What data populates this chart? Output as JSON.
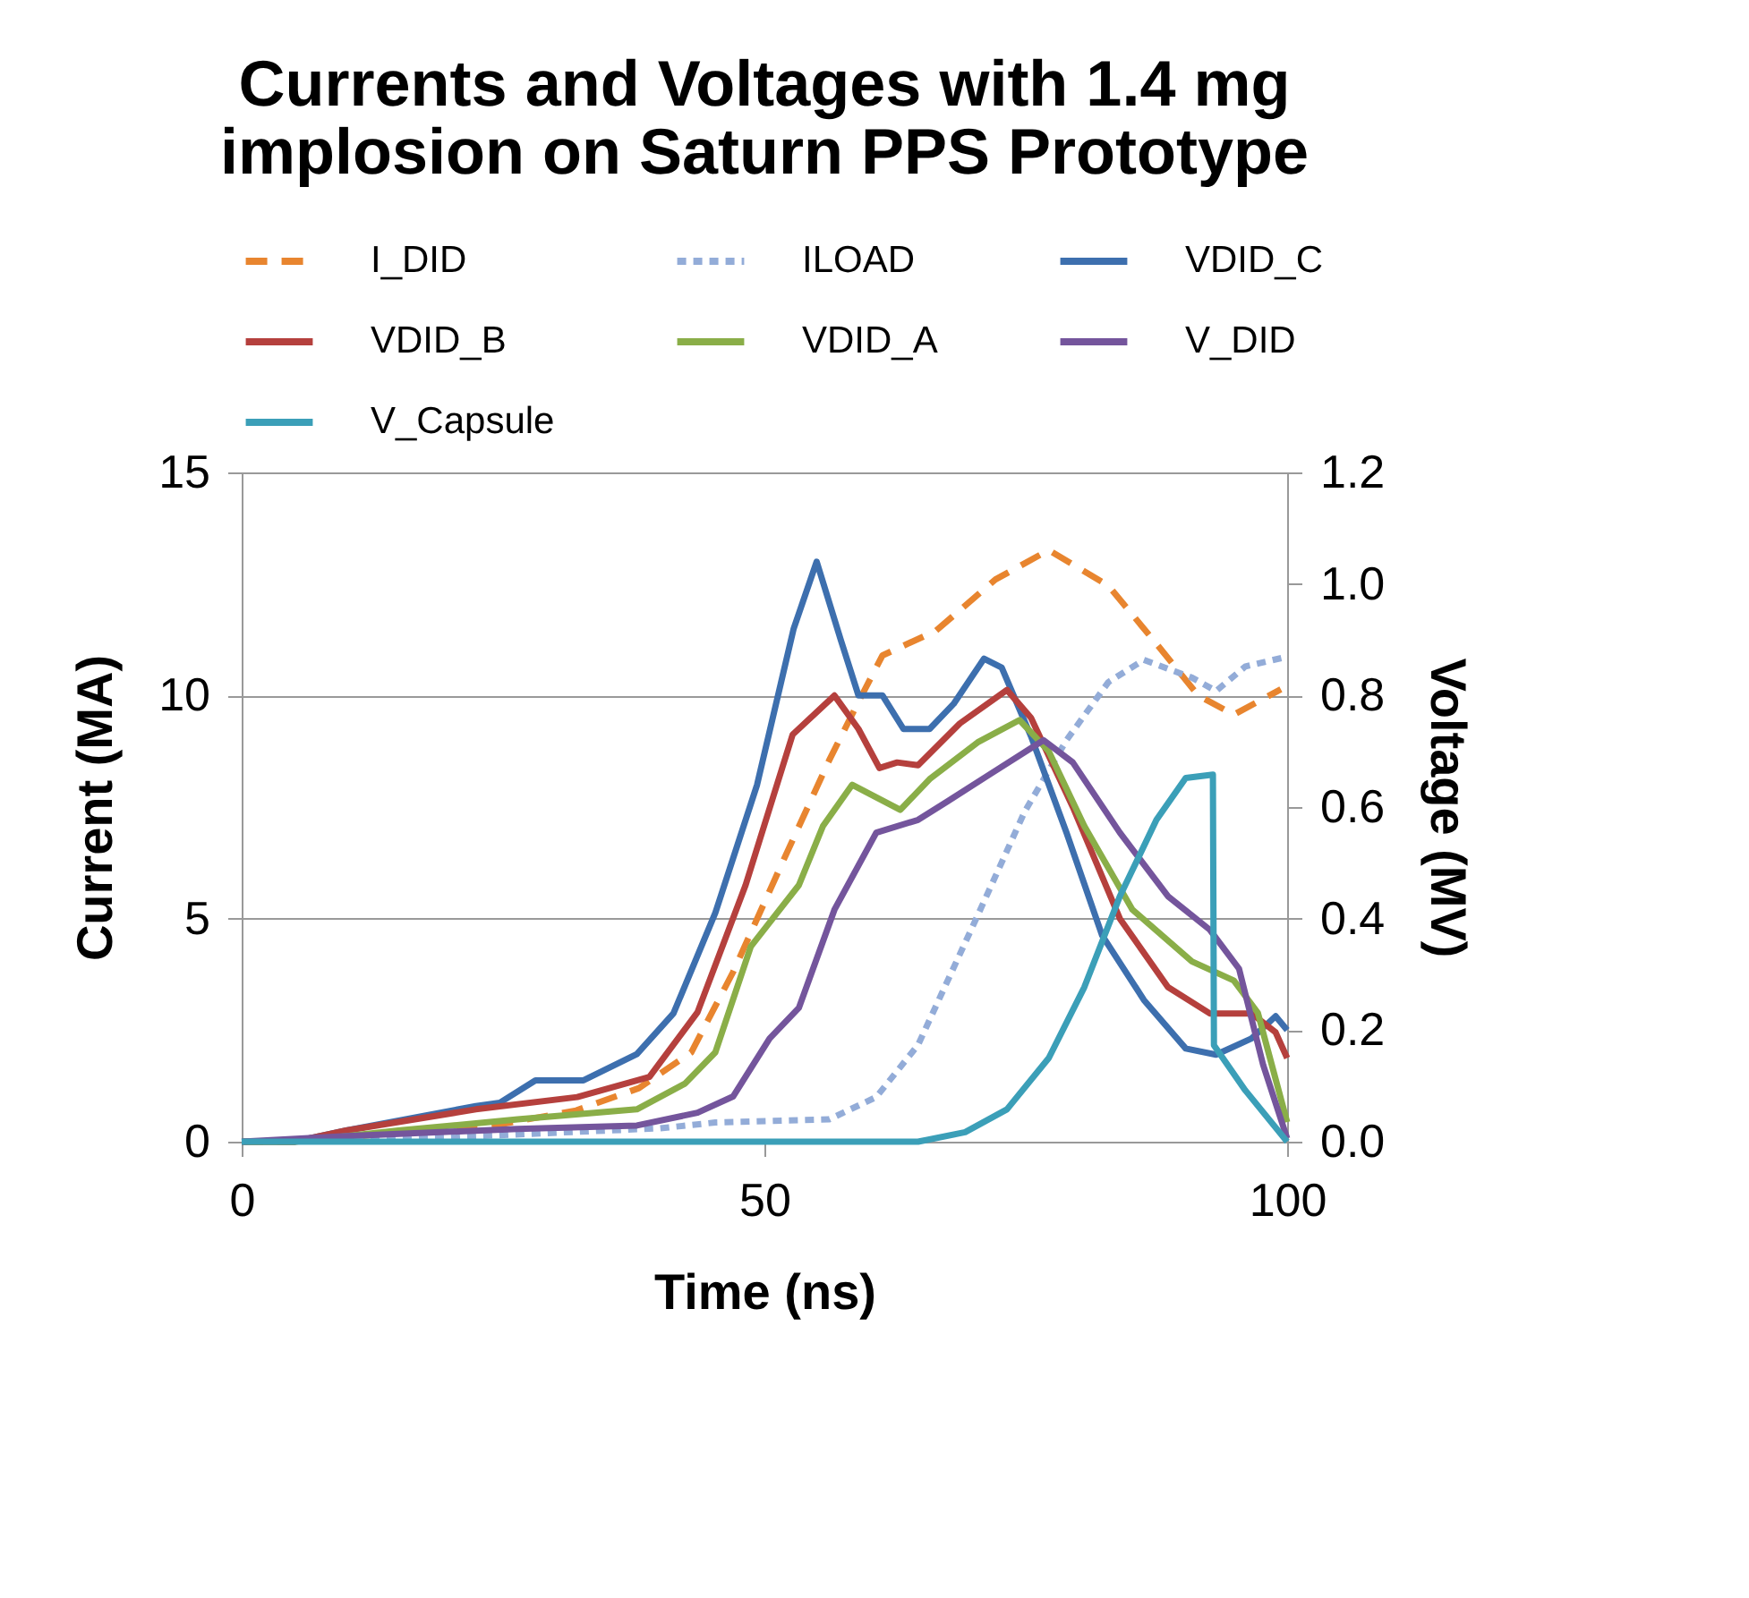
{
  "chart_data": {
    "type": "line",
    "title": "Currents and Voltages with 1.4 mg implosion on Saturn PPS Prototype",
    "xlabel": "Time (ns)",
    "ylabel": "Current (MA)",
    "y2label": "Voltage (MV)",
    "xlim": [
      0,
      100
    ],
    "xticks": [
      0,
      50,
      100
    ],
    "ylim": [
      0,
      15
    ],
    "yticks": [
      0,
      5,
      10,
      15
    ],
    "y2lim": [
      0,
      1.2
    ],
    "y2ticks": [
      {
        "value": 0,
        "label": "0.0"
      },
      {
        "value": 0.2,
        "label": "0.2"
      },
      {
        "value": 0.4,
        "label": "0.4"
      },
      {
        "value": 0.6,
        "label": "0.6"
      },
      {
        "value": 0.8,
        "label": "0.8"
      },
      {
        "value": 1.0,
        "label": "1.0"
      },
      {
        "value": 1.2,
        "label": "1.2"
      }
    ],
    "grid": "y",
    "legend": "top",
    "marker": "none",
    "series": [
      {
        "name": "I_DID",
        "color": "#e8852f",
        "line_style": "dashed",
        "x": [
          0,
          5,
          15,
          25,
          32,
          38,
          43,
          47,
          52,
          56.2,
          59,
          61.3,
          66.4,
          72.1,
          77.2,
          82.9,
          87.5,
          91.5,
          94.9,
          99.4
        ],
        "values": [
          0,
          0,
          0.2,
          0.4,
          0.7,
          1.2,
          2.0,
          3.8,
          6.4,
          8.55,
          9.86,
          10.9,
          11.45,
          12.6,
          13.26,
          12.46,
          11.16,
          10.0,
          9.57,
          10.14
        ]
      },
      {
        "name": "ILOAD",
        "color": "#93acd8",
        "line_style": "dotted",
        "x": [
          0,
          20,
          40,
          45.3,
          56.2,
          60.7,
          64.7,
          70.4,
          74.9,
          78.9,
          82.9,
          86.3,
          90.9,
          93.2,
          96,
          100
        ],
        "values": [
          0,
          0.1,
          0.3,
          0.43,
          0.5,
          1.0,
          2.17,
          5.07,
          7.4,
          9.0,
          10.3,
          10.8,
          10.4,
          10.1,
          10.65,
          10.87
        ]
      },
      {
        "name": "VDID_C",
        "color": "#3d6fae",
        "line_style": "solid",
        "axis": "y2",
        "x": [
          0,
          5,
          10,
          22.4,
          24.7,
          28.1,
          32.7,
          37.8,
          41.3,
          45.3,
          49.3,
          52.8,
          55,
          57.3,
          59,
          61.3,
          63.3,
          65.8,
          68.1,
          71,
          72.7,
          75.5,
          78.9,
          82.3,
          86.3,
          90.3,
          93.2,
          96.6,
          98.9,
          100
        ],
        "values": [
          0,
          0,
          0.02,
          0.064,
          0.07,
          0.11,
          0.11,
          0.157,
          0.23,
          0.41,
          0.64,
          0.92,
          1.04,
          0.9,
          0.8,
          0.8,
          0.74,
          0.74,
          0.785,
          0.866,
          0.85,
          0.727,
          0.554,
          0.37,
          0.254,
          0.167,
          0.156,
          0.185,
          0.225,
          0.2
        ]
      },
      {
        "name": "VDID_B",
        "color": "#b5403d",
        "line_style": "solid",
        "axis": "y2",
        "x": [
          0,
          5,
          10,
          22.4,
          32.1,
          39,
          43.6,
          48.2,
          52.7,
          56.7,
          59,
          61,
          62.7,
          64.7,
          68.7,
          73.2,
          75.5,
          79.5,
          84,
          88.6,
          92.6,
          96.6,
          98.9,
          100
        ],
        "values": [
          0,
          0,
          0.02,
          0.058,
          0.08,
          0.116,
          0.232,
          0.46,
          0.73,
          0.8,
          0.74,
          0.67,
          0.68,
          0.675,
          0.75,
          0.81,
          0.76,
          0.6,
          0.4,
          0.277,
          0.23,
          0.23,
          0.196,
          0.15
        ]
      },
      {
        "name": "VDID_A",
        "color": "#8aae48",
        "line_style": "solid",
        "axis": "y2",
        "x": [
          0,
          5,
          15,
          26.4,
          37.8,
          42.4,
          45.3,
          48.7,
          53.3,
          55.6,
          58.4,
          63,
          65.8,
          70.4,
          74.4,
          77.2,
          80.6,
          85.2,
          90.9,
          94.9,
          97.2,
          100
        ],
        "values": [
          0,
          0,
          0.02,
          0.04,
          0.058,
          0.104,
          0.16,
          0.35,
          0.46,
          0.566,
          0.64,
          0.595,
          0.65,
          0.716,
          0.756,
          0.7,
          0.566,
          0.416,
          0.323,
          0.289,
          0.231,
          0.035
        ]
      },
      {
        "name": "V_DID",
        "color": "#74559c",
        "line_style": "solid",
        "axis": "y2",
        "x": [
          0,
          10,
          26.4,
          37.8,
          43.6,
          47,
          50.5,
          53.3,
          56.7,
          60.7,
          64.7,
          67.5,
          71.5,
          76.7,
          79.5,
          84,
          88.6,
          92.6,
          95.4,
          97.7,
          100
        ],
        "values": [
          0,
          0.01,
          0.023,
          0.029,
          0.052,
          0.081,
          0.185,
          0.24,
          0.416,
          0.554,
          0.577,
          0.61,
          0.658,
          0.72,
          0.68,
          0.554,
          0.44,
          0.38,
          0.31,
          0.138,
          0.006
        ]
      },
      {
        "name": "V_Capsule",
        "color": "#3b9fb8",
        "line_style": "solid",
        "axis": "y2",
        "x": [
          0,
          64.7,
          69.2,
          73.2,
          77.2,
          80.6,
          84,
          87.5,
          90.3,
          92.9,
          93,
          96,
          100
        ],
        "values": [
          0,
          0,
          0.017,
          0.058,
          0.15,
          0.277,
          0.44,
          0.577,
          0.652,
          0.658,
          0.173,
          0.092,
          0
        ]
      }
    ]
  }
}
